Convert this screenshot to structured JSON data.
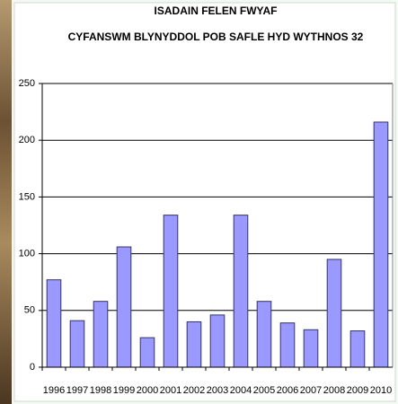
{
  "chart_data": {
    "type": "bar",
    "title": "ISADAIN FELEN FWYAF",
    "subtitle": "CYFANSWM BLYNYDDOL POB SAFLE HYD WYTHNOS 32",
    "categories": [
      "1996",
      "1997",
      "1998",
      "1999",
      "2000",
      "2001",
      "2002",
      "2003",
      "2004",
      "2005",
      "2006",
      "2007",
      "2008",
      "2009",
      "2010"
    ],
    "values": [
      77,
      41,
      58,
      106,
      26,
      134,
      40,
      46,
      134,
      58,
      39,
      33,
      95,
      32,
      216
    ],
    "color": "#9999ff",
    "ylim": [
      0,
      250
    ],
    "yticks": [
      0,
      50,
      100,
      150,
      200,
      250
    ],
    "grid": true
  }
}
